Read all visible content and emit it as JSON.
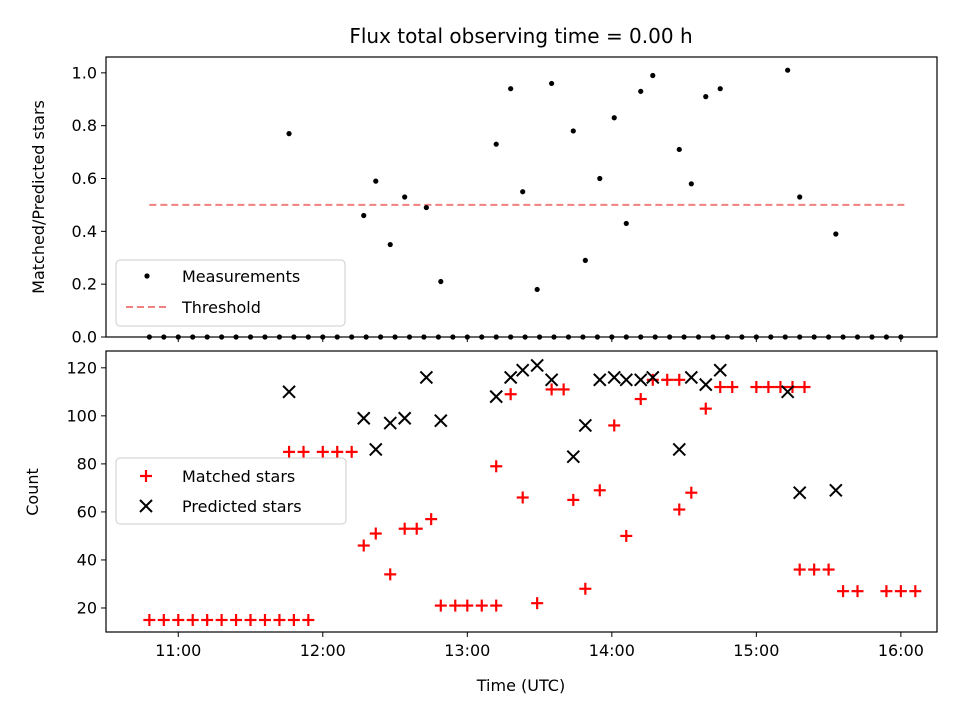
{
  "chart_data": [
    {
      "type": "scatter",
      "title": "Flux total observing time = 0.00 h",
      "xlabel": "",
      "ylabel": "Matched/Predicted stars",
      "xlim": [
        "10:30",
        "16:15"
      ],
      "ylim": [
        0,
        1.06
      ],
      "yticks": [
        "0.0",
        "0.2",
        "0.4",
        "0.6",
        "0.8",
        "1.0"
      ],
      "legend": "lower-left",
      "series": [
        {
          "name": "Measurements",
          "color": "#000000",
          "marker": "dot",
          "points": [
            [
              "10:48",
              0
            ],
            [
              "10:54",
              0
            ],
            [
              "11:00",
              0
            ],
            [
              "11:06",
              0
            ],
            [
              "11:12",
              0
            ],
            [
              "11:18",
              0
            ],
            [
              "11:24",
              0
            ],
            [
              "11:30",
              0
            ],
            [
              "11:36",
              0
            ],
            [
              "11:42",
              0
            ],
            [
              "11:48",
              0
            ],
            [
              "11:54",
              0
            ],
            [
              "12:00",
              0
            ],
            [
              "12:06",
              0
            ],
            [
              "12:12",
              0
            ],
            [
              "12:18",
              0
            ],
            [
              "12:24",
              0
            ],
            [
              "12:30",
              0
            ],
            [
              "12:36",
              0
            ],
            [
              "12:42",
              0
            ],
            [
              "12:48",
              0
            ],
            [
              "12:54",
              0
            ],
            [
              "13:00",
              0
            ],
            [
              "13:06",
              0
            ],
            [
              "13:12",
              0
            ],
            [
              "13:18",
              0
            ],
            [
              "13:24",
              0
            ],
            [
              "13:30",
              0
            ],
            [
              "13:36",
              0
            ],
            [
              "13:42",
              0
            ],
            [
              "13:48",
              0
            ],
            [
              "13:54",
              0
            ],
            [
              "14:00",
              0
            ],
            [
              "14:06",
              0
            ],
            [
              "14:12",
              0
            ],
            [
              "14:18",
              0
            ],
            [
              "14:24",
              0
            ],
            [
              "14:30",
              0
            ],
            [
              "14:36",
              0
            ],
            [
              "14:42",
              0
            ],
            [
              "14:48",
              0
            ],
            [
              "14:54",
              0
            ],
            [
              "15:00",
              0
            ],
            [
              "15:06",
              0
            ],
            [
              "15:12",
              0
            ],
            [
              "15:18",
              0
            ],
            [
              "15:24",
              0
            ],
            [
              "15:30",
              0
            ],
            [
              "15:36",
              0
            ],
            [
              "15:42",
              0
            ],
            [
              "15:48",
              0
            ],
            [
              "15:54",
              0
            ],
            [
              "16:00",
              0
            ],
            [
              "11:46",
              0.77
            ],
            [
              "12:17",
              0.46
            ],
            [
              "12:22",
              0.59
            ],
            [
              "12:28",
              0.35
            ],
            [
              "12:34",
              0.53
            ],
            [
              "12:43",
              0.49
            ],
            [
              "12:49",
              0.21
            ],
            [
              "13:12",
              0.73
            ],
            [
              "13:18",
              0.94
            ],
            [
              "13:23",
              0.55
            ],
            [
              "13:29",
              0.18
            ],
            [
              "13:35",
              0.96
            ],
            [
              "13:44",
              0.78
            ],
            [
              "13:49",
              0.29
            ],
            [
              "13:55",
              0.6
            ],
            [
              "14:01",
              0.83
            ],
            [
              "14:06",
              0.43
            ],
            [
              "14:12",
              0.93
            ],
            [
              "14:17",
              0.99
            ],
            [
              "14:28",
              0.71
            ],
            [
              "14:33",
              0.58
            ],
            [
              "14:39",
              0.91
            ],
            [
              "14:45",
              0.94
            ],
            [
              "15:13",
              1.01
            ],
            [
              "15:18",
              0.53
            ],
            [
              "15:33",
              0.39
            ]
          ]
        },
        {
          "name": "Threshold",
          "color": "#f08080",
          "style": "dashed",
          "points": [
            [
              "10:48",
              0.5
            ],
            [
              "16:03",
              0.5
            ]
          ]
        }
      ]
    },
    {
      "type": "scatter",
      "title": "",
      "xlabel": "Time (UTC)",
      "ylabel": "Count",
      "xlim": [
        "10:30",
        "16:15"
      ],
      "ylim": [
        10,
        127
      ],
      "xticks": [
        "11:00",
        "12:00",
        "13:00",
        "14:00",
        "15:00",
        "16:00"
      ],
      "yticks": [
        "20",
        "40",
        "60",
        "80",
        "100",
        "120"
      ],
      "legend": "center-left",
      "series": [
        {
          "name": "Matched stars",
          "color": "#ff0000",
          "marker": "plus",
          "points": [
            [
              "10:48",
              15
            ],
            [
              "10:54",
              15
            ],
            [
              "11:00",
              15
            ],
            [
              "11:06",
              15
            ],
            [
              "11:12",
              15
            ],
            [
              "11:18",
              15
            ],
            [
              "11:24",
              15
            ],
            [
              "11:30",
              15
            ],
            [
              "11:36",
              15
            ],
            [
              "11:42",
              15
            ],
            [
              "11:48",
              15
            ],
            [
              "11:54",
              15
            ],
            [
              "11:46",
              85
            ],
            [
              "11:52",
              85
            ],
            [
              "12:00",
              85
            ],
            [
              "12:06",
              85
            ],
            [
              "12:12",
              85
            ],
            [
              "12:17",
              46
            ],
            [
              "12:22",
              51
            ],
            [
              "12:28",
              34
            ],
            [
              "12:34",
              53
            ],
            [
              "12:39",
              53
            ],
            [
              "12:45",
              57
            ],
            [
              "12:49",
              21
            ],
            [
              "12:55",
              21
            ],
            [
              "13:00",
              21
            ],
            [
              "13:06",
              21
            ],
            [
              "13:12",
              21
            ],
            [
              "13:12",
              79
            ],
            [
              "13:18",
              109
            ],
            [
              "13:23",
              66
            ],
            [
              "13:29",
              22
            ],
            [
              "13:35",
              111
            ],
            [
              "13:40",
              111
            ],
            [
              "13:44",
              65
            ],
            [
              "13:49",
              28
            ],
            [
              "13:55",
              69
            ],
            [
              "14:01",
              96
            ],
            [
              "14:06",
              50
            ],
            [
              "14:12",
              107
            ],
            [
              "14:17",
              115
            ],
            [
              "14:23",
              115
            ],
            [
              "14:28",
              115
            ],
            [
              "14:28",
              61
            ],
            [
              "14:33",
              68
            ],
            [
              "14:39",
              103
            ],
            [
              "14:45",
              112
            ],
            [
              "14:50",
              112
            ],
            [
              "15:00",
              112
            ],
            [
              "15:05",
              112
            ],
            [
              "15:10",
              112
            ],
            [
              "15:15",
              112
            ],
            [
              "15:20",
              112
            ],
            [
              "15:18",
              36
            ],
            [
              "15:24",
              36
            ],
            [
              "15:30",
              36
            ],
            [
              "15:36",
              27
            ],
            [
              "15:42",
              27
            ],
            [
              "15:54",
              27
            ],
            [
              "16:00",
              27
            ],
            [
              "16:06",
              27
            ]
          ]
        },
        {
          "name": "Predicted stars",
          "color": "#000000",
          "marker": "x",
          "points": [
            [
              "11:46",
              110
            ],
            [
              "12:17",
              99
            ],
            [
              "12:22",
              86
            ],
            [
              "12:28",
              97
            ],
            [
              "12:34",
              99
            ],
            [
              "12:43",
              116
            ],
            [
              "12:49",
              98
            ],
            [
              "13:12",
              108
            ],
            [
              "13:18",
              116
            ],
            [
              "13:23",
              119
            ],
            [
              "13:29",
              121
            ],
            [
              "13:35",
              115
            ],
            [
              "13:44",
              83
            ],
            [
              "13:49",
              96
            ],
            [
              "13:55",
              115
            ],
            [
              "14:01",
              116
            ],
            [
              "14:06",
              115
            ],
            [
              "14:12",
              115
            ],
            [
              "14:17",
              116
            ],
            [
              "14:28",
              86
            ],
            [
              "14:33",
              116
            ],
            [
              "14:39",
              113
            ],
            [
              "14:45",
              119
            ],
            [
              "15:13",
              110
            ],
            [
              "15:18",
              68
            ],
            [
              "15:33",
              69
            ]
          ]
        }
      ]
    }
  ]
}
